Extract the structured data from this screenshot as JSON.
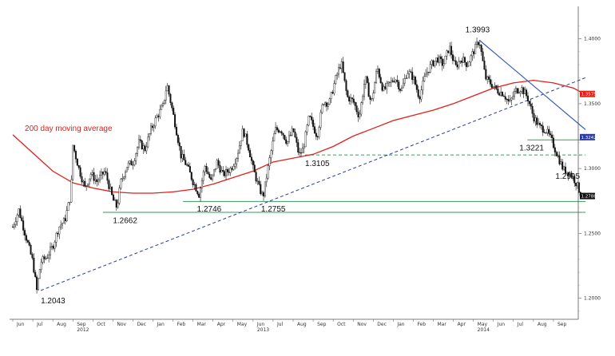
{
  "chart_data": {
    "type": "candlestick",
    "title": "",
    "xlabel": "",
    "ylabel": "",
    "ylim": [
      1.185,
      1.425
    ],
    "y_ticks": [
      {
        "value": 1.2,
        "label": "1.2000"
      },
      {
        "value": 1.25,
        "label": "1.2500"
      },
      {
        "value": 1.3,
        "label": "1.3000"
      },
      {
        "value": 1.35,
        "label": "1.3500"
      },
      {
        "value": 1.4,
        "label": "1.4000"
      }
    ],
    "x_months": [
      "Jun",
      "Jul",
      "Aug",
      "Sep",
      "Oct",
      "Nov",
      "Dec",
      "Jan",
      "Feb",
      "Mar",
      "Apr",
      "May",
      "Jun",
      "Jul",
      "Aug",
      "Sep",
      "Oct",
      "Nov",
      "Dec",
      "Jan",
      "Feb",
      "Mar",
      "Apr",
      "May",
      "Jun",
      "Jul",
      "Aug",
      "Sep"
    ],
    "x_years": [
      {
        "label": "2012",
        "month_index": 3
      },
      {
        "label": "2013",
        "month_index": 12
      },
      {
        "label": "2014",
        "month_index": 23
      }
    ],
    "series": [
      {
        "kind": "price",
        "color": "#111111",
        "path": [
          [
            0,
            1.255
          ],
          [
            0.3,
            1.268
          ],
          [
            0.7,
            1.245
          ],
          [
            1.0,
            1.228
          ],
          [
            1.2,
            1.206
          ],
          [
            1.4,
            1.228
          ],
          [
            1.7,
            1.232
          ],
          [
            2.0,
            1.24
          ],
          [
            2.3,
            1.255
          ],
          [
            2.6,
            1.26
          ],
          [
            2.9,
            1.28
          ],
          [
            3.0,
            1.318
          ],
          [
            3.3,
            1.3
          ],
          [
            3.6,
            1.285
          ],
          [
            3.9,
            1.296
          ],
          [
            4.2,
            1.29
          ],
          [
            4.6,
            1.298
          ],
          [
            5.0,
            1.276
          ],
          [
            5.2,
            1.27
          ],
          [
            5.4,
            1.29
          ],
          [
            5.7,
            1.302
          ],
          [
            6.0,
            1.305
          ],
          [
            6.3,
            1.32
          ],
          [
            6.6,
            1.315
          ],
          [
            6.9,
            1.33
          ],
          [
            7.2,
            1.34
          ],
          [
            7.5,
            1.348
          ],
          [
            7.7,
            1.365
          ],
          [
            7.9,
            1.35
          ],
          [
            8.1,
            1.335
          ],
          [
            8.4,
            1.31
          ],
          [
            8.7,
            1.302
          ],
          [
            9.0,
            1.29
          ],
          [
            9.3,
            1.28
          ],
          [
            9.6,
            1.302
          ],
          [
            9.9,
            1.29
          ],
          [
            10.2,
            1.305
          ],
          [
            10.5,
            1.295
          ],
          [
            10.9,
            1.3
          ],
          [
            11.2,
            1.31
          ],
          [
            11.5,
            1.33
          ],
          [
            11.8,
            1.315
          ],
          [
            12.0,
            1.3
          ],
          [
            12.3,
            1.285
          ],
          [
            12.5,
            1.278
          ],
          [
            12.8,
            1.305
          ],
          [
            13.1,
            1.33
          ],
          [
            13.4,
            1.33
          ],
          [
            13.7,
            1.32
          ],
          [
            14.0,
            1.33
          ],
          [
            14.3,
            1.31
          ],
          [
            14.5,
            1.315
          ],
          [
            14.8,
            1.34
          ],
          [
            15.2,
            1.325
          ],
          [
            15.5,
            1.352
          ],
          [
            15.8,
            1.35
          ],
          [
            16.1,
            1.368
          ],
          [
            16.4,
            1.382
          ],
          [
            16.7,
            1.355
          ],
          [
            17.0,
            1.352
          ],
          [
            17.3,
            1.34
          ],
          [
            17.6,
            1.37
          ],
          [
            17.9,
            1.35
          ],
          [
            18.2,
            1.378
          ],
          [
            18.5,
            1.36
          ],
          [
            18.8,
            1.365
          ],
          [
            19.1,
            1.37
          ],
          [
            19.4,
            1.36
          ],
          [
            19.7,
            1.375
          ],
          [
            20.0,
            1.37
          ],
          [
            20.3,
            1.355
          ],
          [
            20.6,
            1.372
          ],
          [
            20.9,
            1.38
          ],
          [
            21.2,
            1.385
          ],
          [
            21.5,
            1.38
          ],
          [
            21.8,
            1.394
          ],
          [
            22.1,
            1.378
          ],
          [
            22.4,
            1.385
          ],
          [
            22.7,
            1.38
          ],
          [
            23.0,
            1.39
          ],
          [
            23.3,
            1.399
          ],
          [
            23.6,
            1.37
          ],
          [
            23.9,
            1.365
          ],
          [
            24.2,
            1.36
          ],
          [
            24.5,
            1.358
          ],
          [
            24.8,
            1.35
          ],
          [
            25.1,
            1.36
          ],
          [
            25.4,
            1.362
          ],
          [
            25.7,
            1.355
          ],
          [
            26.0,
            1.34
          ],
          [
            26.3,
            1.332
          ],
          [
            26.6,
            1.33
          ],
          [
            26.9,
            1.322
          ],
          [
            27.2,
            1.31
          ],
          [
            27.5,
            1.299
          ],
          [
            27.8,
            1.297
          ],
          [
            28.1,
            1.29
          ],
          [
            28.4,
            1.279
          ]
        ]
      },
      {
        "kind": "moving-average",
        "name": "200 day moving average",
        "color": "#e0201b",
        "path": [
          [
            0,
            1.326
          ],
          [
            1,
            1.312
          ],
          [
            2,
            1.298
          ],
          [
            3,
            1.289
          ],
          [
            4,
            1.285
          ],
          [
            5,
            1.282
          ],
          [
            6,
            1.281
          ],
          [
            7,
            1.281
          ],
          [
            8,
            1.282
          ],
          [
            9,
            1.284
          ],
          [
            10,
            1.288
          ],
          [
            11,
            1.293
          ],
          [
            12,
            1.298
          ],
          [
            13,
            1.305
          ],
          [
            14,
            1.308
          ],
          [
            15,
            1.311
          ],
          [
            16,
            1.317
          ],
          [
            17,
            1.325
          ],
          [
            18,
            1.331
          ],
          [
            19,
            1.337
          ],
          [
            20,
            1.341
          ],
          [
            21,
            1.345
          ],
          [
            22,
            1.35
          ],
          [
            23,
            1.356
          ],
          [
            24,
            1.362
          ],
          [
            25,
            1.366
          ],
          [
            26,
            1.368
          ],
          [
            27,
            1.366
          ],
          [
            28,
            1.362
          ],
          [
            28.5,
            1.358
          ]
        ]
      }
    ],
    "lines": [
      {
        "kind": "support",
        "style": "solid",
        "color": "#3a9a5b",
        "y": 1.2662,
        "x_from": 4.5,
        "x_to": 28.6
      },
      {
        "kind": "support",
        "style": "solid",
        "color": "#3a9a5b",
        "y": 1.2746,
        "x_from": 8.5,
        "x_to": 28.6
      },
      {
        "kind": "support",
        "style": "dashed",
        "color": "#3a9a5b",
        "y": 1.3105,
        "x_from": 14.6,
        "x_to": 28.6
      },
      {
        "kind": "support",
        "style": "solid",
        "color": "#3a9a5b",
        "y": 1.3221,
        "x_from": 25.7,
        "x_to": 28.6
      },
      {
        "kind": "trend",
        "style": "dashed",
        "color": "#2b3aa0",
        "from": [
          1.4,
          1.206
        ],
        "to": [
          28.6,
          1.37
        ]
      },
      {
        "kind": "trend",
        "style": "solid",
        "color": "#3a5fb8",
        "from": [
          23.3,
          1.399
        ],
        "to": [
          28.6,
          1.33
        ]
      }
    ],
    "annotations": [
      {
        "text": "1.2043",
        "x": 1.4,
        "y": 1.196
      },
      {
        "text": "1.2662",
        "x": 5.0,
        "y": 1.258
      },
      {
        "text": "1.2746",
        "x": 9.2,
        "y": 1.267
      },
      {
        "text": "1.2755",
        "x": 12.4,
        "y": 1.267
      },
      {
        "text": "1.3105",
        "x": 14.6,
        "y": 1.302
      },
      {
        "text": "1.3993",
        "x": 22.6,
        "y": 1.405
      },
      {
        "text": "1.3221",
        "x": 25.3,
        "y": 1.314
      },
      {
        "text": "1.2995",
        "x": 27.1,
        "y": 1.292
      }
    ],
    "ma_label": {
      "text": "200 day moving average",
      "x": 0.6,
      "y": 1.329
    },
    "price_tags": [
      {
        "text": "1.3575",
        "y": 1.3575,
        "color": "#e0201b"
      },
      {
        "text": "1.3242",
        "y": 1.3242,
        "color": "#2b3aa0"
      },
      {
        "text": "1.2788",
        "y": 1.2788,
        "color": "#111111"
      }
    ],
    "grid": false,
    "legend": "none"
  }
}
